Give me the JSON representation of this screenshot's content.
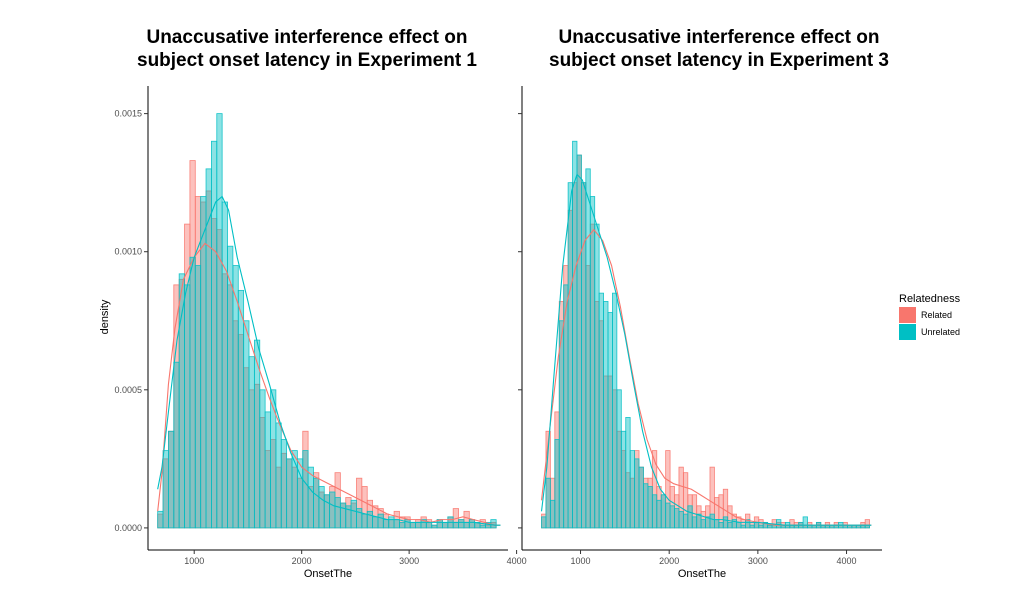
{
  "colors": {
    "related": "#F8766D",
    "unrelated": "#00BFC4"
  },
  "legend": {
    "title": "Relatedness",
    "placement": "right",
    "items": [
      {
        "label": "Related",
        "color": "#F8766D"
      },
      {
        "label": "Unrelated",
        "color": "#00BFC4"
      }
    ]
  },
  "chart_data": [
    {
      "type": "bar",
      "title_lines": [
        "Unaccusative interference effect on",
        "subject onset latency in Experiment 1"
      ],
      "xlabel": "OnsetThe",
      "ylabel": "density",
      "xlim": [
        570,
        3920
      ],
      "ylim": [
        -8e-05,
        0.0016
      ],
      "x_ticks": [
        1000,
        2000,
        3000,
        4000
      ],
      "x_tick_labels": [
        "1000",
        "2000",
        "3000",
        "4000"
      ],
      "y_ticks": [
        0,
        0.0005,
        0.001,
        0.0015
      ],
      "y_tick_labels": [
        "0.0000",
        "0.0005",
        "0.0010",
        "0.0015"
      ],
      "grid": false,
      "bin_start": 660,
      "bin_width": 50,
      "series": [
        {
          "name": "Related",
          "values": [
            5e-05,
            0.00025,
            0.00035,
            0.00088,
            0.0009,
            0.0011,
            0.00133,
            0.0012,
            0.00118,
            0.00122,
            0.00112,
            0.00108,
            0.00092,
            0.00088,
            0.00075,
            0.0007,
            0.00058,
            0.0005,
            0.00052,
            0.0004,
            0.00028,
            0.00032,
            0.00022,
            0.00027,
            0.00025,
            0.00022,
            0.00018,
            0.00035,
            0.00015,
            0.0002,
            0.00013,
            0.00012,
            0.00015,
            0.0002,
            9e-05,
            0.00011,
            9e-05,
            0.00018,
            0.00015,
            0.0001,
            8e-05,
            7e-05,
            5e-05,
            3e-05,
            6e-05,
            4e-05,
            4e-05,
            2e-05,
            3e-05,
            4e-05,
            3e-05,
            1e-05,
            3e-05,
            2e-05,
            4e-05,
            7e-05,
            3e-05,
            6e-05,
            3e-05,
            2e-05,
            3e-05,
            1e-05,
            2e-05
          ],
          "density": [
            [
              660,
              6e-05
            ],
            [
              700,
              0.0002
            ],
            [
              760,
              0.00052
            ],
            [
              820,
              0.00072
            ],
            [
              900,
              0.0009
            ],
            [
              1000,
              0.00098
            ],
            [
              1100,
              0.00103
            ],
            [
              1200,
              0.001
            ],
            [
              1300,
              0.00093
            ],
            [
              1400,
              0.00082
            ],
            [
              1500,
              0.0007
            ],
            [
              1600,
              0.00058
            ],
            [
              1700,
              0.00047
            ],
            [
              1800,
              0.00037
            ],
            [
              1900,
              0.00028
            ],
            [
              2000,
              0.00022
            ],
            [
              2100,
              0.00019
            ],
            [
              2200,
              0.00017
            ],
            [
              2300,
              0.00015
            ],
            [
              2400,
              0.00013
            ],
            [
              2500,
              0.00011
            ],
            [
              2600,
              9e-05
            ],
            [
              2700,
              7e-05
            ],
            [
              2800,
              5e-05
            ],
            [
              2900,
              4e-05
            ],
            [
              3000,
              3e-05
            ],
            [
              3100,
              3e-05
            ],
            [
              3200,
              2e-05
            ],
            [
              3300,
              3e-05
            ],
            [
              3400,
              3e-05
            ],
            [
              3500,
              4e-05
            ],
            [
              3600,
              3e-05
            ],
            [
              3700,
              2e-05
            ],
            [
              3800,
              1e-05
            ],
            [
              3850,
              1e-05
            ]
          ]
        },
        {
          "name": "Unrelated",
          "values": [
            6e-05,
            0.00028,
            0.00035,
            0.0006,
            0.00092,
            0.00088,
            0.00098,
            0.00095,
            0.0012,
            0.0013,
            0.0014,
            0.0015,
            0.00118,
            0.00102,
            0.00095,
            0.00086,
            0.00075,
            0.00062,
            0.00068,
            0.0005,
            0.00042,
            0.0005,
            0.00038,
            0.00032,
            0.00025,
            0.00028,
            0.00025,
            0.00028,
            0.00022,
            0.00018,
            0.00015,
            0.00012,
            0.00013,
            0.00011,
            9e-05,
            8e-05,
            0.0001,
            7e-05,
            5e-05,
            6e-05,
            4e-05,
            5e-05,
            3e-05,
            4e-05,
            3e-05,
            2e-05,
            3e-05,
            2e-05,
            2e-05,
            3e-05,
            2e-05,
            1e-05,
            3e-05,
            2e-05,
            4e-05,
            2e-05,
            3e-05,
            2e-05,
            3e-05,
            2e-05,
            1e-05,
            2e-05,
            3e-05
          ],
          "density": [
            [
              660,
              0.00014
            ],
            [
              700,
              0.00022
            ],
            [
              760,
              0.00042
            ],
            [
              840,
              0.00068
            ],
            [
              920,
              0.00085
            ],
            [
              1000,
              0.00098
            ],
            [
              1100,
              0.00108
            ],
            [
              1200,
              0.00118
            ],
            [
              1260,
              0.0012
            ],
            [
              1320,
              0.00115
            ],
            [
              1400,
              0.00098
            ],
            [
              1500,
              0.00082
            ],
            [
              1600,
              0.00065
            ],
            [
              1700,
              0.00052
            ],
            [
              1800,
              0.00038
            ],
            [
              1900,
              0.00027
            ],
            [
              2000,
              0.00018
            ],
            [
              2100,
              0.00013
            ],
            [
              2200,
              0.0001
            ],
            [
              2300,
              8e-05
            ],
            [
              2400,
              7e-05
            ],
            [
              2500,
              6e-05
            ],
            [
              2600,
              5e-05
            ],
            [
              2700,
              4e-05
            ],
            [
              2800,
              3e-05
            ],
            [
              2900,
              3e-05
            ],
            [
              3000,
              2e-05
            ],
            [
              3200,
              2e-05
            ],
            [
              3400,
              2e-05
            ],
            [
              3600,
              2e-05
            ],
            [
              3800,
              1e-05
            ],
            [
              3850,
              1e-05
            ]
          ]
        }
      ]
    },
    {
      "type": "bar",
      "title_lines": [
        "Unaccusative interference effect on",
        "subject onset latency in Experiment 3"
      ],
      "xlabel": "OnsetThe",
      "ylabel": "",
      "xlim": [
        340,
        4400
      ],
      "ylim": [
        -8e-05,
        0.0016
      ],
      "x_ticks": [
        1000,
        2000,
        3000,
        4000
      ],
      "x_tick_labels": [
        "1000",
        "2000",
        "3000",
        "4000"
      ],
      "y_ticks": [
        0,
        0.0005,
        0.001,
        0.0015
      ],
      "y_tick_labels": [],
      "grid": false,
      "bin_start": 560,
      "bin_width": 50,
      "series": [
        {
          "name": "Related",
          "values": [
            5e-05,
            0.00035,
            0.00018,
            0.00042,
            0.00082,
            0.00095,
            0.00115,
            0.00125,
            0.00135,
            0.00125,
            0.00095,
            0.0011,
            0.00082,
            0.00075,
            0.00055,
            0.00055,
            0.0005,
            0.00035,
            0.00028,
            0.0002,
            0.00018,
            0.00028,
            0.00022,
            0.00018,
            0.00018,
            0.00028,
            0.00015,
            0.00012,
            0.00028,
            0.00015,
            0.00012,
            0.00022,
            0.0002,
            0.00012,
            0.00012,
            8e-05,
            6e-05,
            8e-05,
            0.00022,
            0.00011,
            0.00012,
            0.00014,
            8e-05,
            5e-05,
            4e-05,
            3e-05,
            5e-05,
            2e-05,
            4e-05,
            3e-05,
            2e-05,
            1e-05,
            3e-05,
            2e-05,
            2e-05,
            1e-05,
            3e-05,
            2e-05,
            2e-05,
            1e-05,
            2e-05,
            1e-05,
            2e-05,
            1e-05,
            2e-05,
            1e-05,
            2e-05,
            1e-05,
            2e-05,
            1e-05,
            1e-05,
            1e-05,
            2e-05,
            3e-05
          ],
          "density": [
            [
              560,
              0.0001
            ],
            [
              650,
              0.00035
            ],
            [
              750,
              0.00062
            ],
            [
              850,
              0.00082
            ],
            [
              950,
              0.00095
            ],
            [
              1050,
              0.00104
            ],
            [
              1150,
              0.00108
            ],
            [
              1250,
              0.00104
            ],
            [
              1350,
              0.00095
            ],
            [
              1450,
              0.0008
            ],
            [
              1550,
              0.00062
            ],
            [
              1650,
              0.00045
            ],
            [
              1750,
              0.00032
            ],
            [
              1850,
              0.00023
            ],
            [
              1950,
              0.00018
            ],
            [
              2050,
              0.00016
            ],
            [
              2150,
              0.00015
            ],
            [
              2250,
              0.00014
            ],
            [
              2350,
              0.00012
            ],
            [
              2450,
              0.0001
            ],
            [
              2550,
              8e-05
            ],
            [
              2650,
              6e-05
            ],
            [
              2750,
              4e-05
            ],
            [
              2850,
              3e-05
            ],
            [
              3000,
              2e-05
            ],
            [
              3200,
              1e-05
            ],
            [
              3500,
              1e-05
            ],
            [
              4000,
              1e-05
            ],
            [
              4280,
              1e-05
            ]
          ]
        },
        {
          "name": "Unrelated",
          "values": [
            4e-05,
            0.00018,
            0.0001,
            0.00032,
            0.00075,
            0.00088,
            0.00125,
            0.0014,
            0.00135,
            0.00125,
            0.0013,
            0.0012,
            0.0011,
            0.00085,
            0.00082,
            0.00078,
            0.00085,
            0.0005,
            0.00035,
            0.0004,
            0.00028,
            0.00025,
            0.00022,
            0.00016,
            0.00015,
            0.00012,
            0.0001,
            0.00012,
            9e-05,
            8e-05,
            7e-05,
            6e-05,
            5e-05,
            8e-05,
            4e-05,
            5e-05,
            3e-05,
            4e-05,
            5e-05,
            3e-05,
            2e-05,
            4e-05,
            2e-05,
            3e-05,
            2e-05,
            1e-05,
            3e-05,
            1e-05,
            2e-05,
            1e-05,
            2e-05,
            1e-05,
            1e-05,
            3e-05,
            1e-05,
            2e-05,
            1e-05,
            1e-05,
            2e-05,
            4e-05,
            1e-05,
            1e-05,
            2e-05,
            1e-05,
            1e-05,
            1e-05,
            1e-05,
            2e-05,
            1e-05,
            1e-05,
            1e-05,
            1e-05,
            1e-05,
            1e-05
          ],
          "density": [
            [
              560,
              6e-05
            ],
            [
              620,
              0.00022
            ],
            [
              700,
              0.00055
            ],
            [
              800,
              0.00095
            ],
            [
              900,
              0.00122
            ],
            [
              960,
              0.00128
            ],
            [
              1020,
              0.00126
            ],
            [
              1100,
              0.00118
            ],
            [
              1200,
              0.00108
            ],
            [
              1300,
              0.00098
            ],
            [
              1400,
              0.00085
            ],
            [
              1500,
              0.0007
            ],
            [
              1600,
              0.00052
            ],
            [
              1700,
              0.00035
            ],
            [
              1800,
              0.00022
            ],
            [
              1900,
              0.00014
            ],
            [
              2000,
              0.0001
            ],
            [
              2100,
              8e-05
            ],
            [
              2200,
              6e-05
            ],
            [
              2300,
              5e-05
            ],
            [
              2400,
              4e-05
            ],
            [
              2500,
              3e-05
            ],
            [
              2600,
              3e-05
            ],
            [
              2800,
              2e-05
            ],
            [
              3000,
              2e-05
            ],
            [
              3300,
              1e-05
            ],
            [
              3600,
              1e-05
            ],
            [
              4000,
              1e-05
            ],
            [
              4280,
              1e-05
            ]
          ]
        }
      ]
    }
  ]
}
